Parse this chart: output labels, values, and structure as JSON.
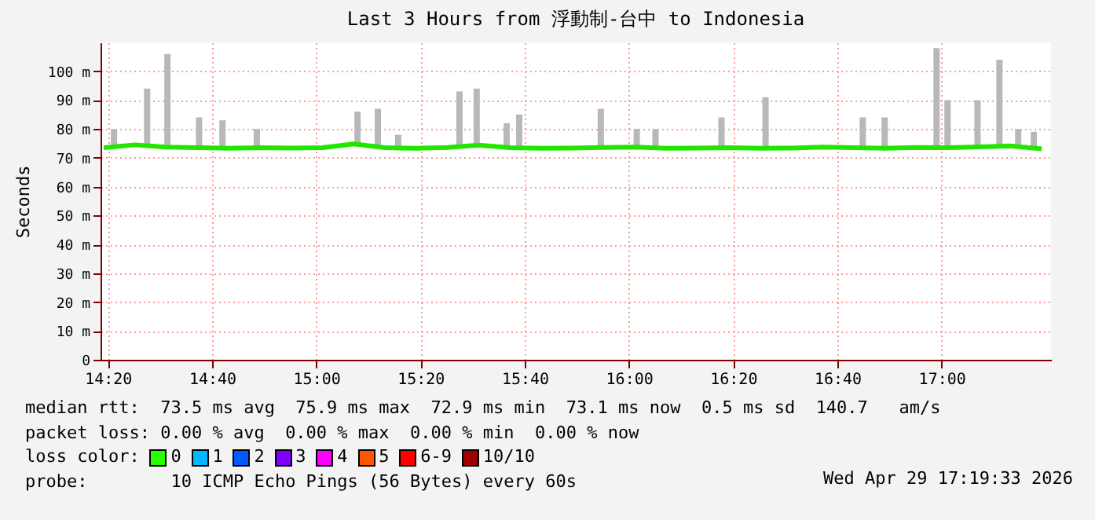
{
  "chart_data": {
    "type": "line",
    "title": "Last 3 Hours from 浮動制-台中 to Indonesia",
    "ylabel": "Seconds",
    "xlim": [
      14.31,
      17.35
    ],
    "xticks": [
      {
        "value": 14.3333,
        "label": "14:20"
      },
      {
        "value": 14.6667,
        "label": "14:40"
      },
      {
        "value": 15,
        "label": "15:00"
      },
      {
        "value": 15.3333,
        "label": "15:20"
      },
      {
        "value": 15.6667,
        "label": "15:40"
      },
      {
        "value": 16,
        "label": "16:00"
      },
      {
        "value": 16.3333,
        "label": "16:20"
      },
      {
        "value": 16.6667,
        "label": "16:40"
      },
      {
        "value": 17,
        "label": "17:00"
      }
    ],
    "ylim": [
      0,
      110
    ],
    "yticks": [
      0,
      {
        "value": 10,
        "label": "10 m"
      },
      {
        "value": 20,
        "label": "20 m"
      },
      {
        "value": 30,
        "label": "30 m"
      },
      {
        "value": 40,
        "label": "40 m"
      },
      {
        "value": 50,
        "label": "50 m"
      },
      {
        "value": 60,
        "label": "60 m"
      },
      {
        "value": 70,
        "label": "70 m"
      },
      {
        "value": 80,
        "label": "80 m"
      },
      {
        "value": 90,
        "label": "90 m"
      },
      {
        "value": 100,
        "label": "100 m"
      }
    ],
    "grid": true,
    "marker": "none",
    "line_style": "solid",
    "series": [
      {
        "type": "bar",
        "color": "#b8b8b8",
        "base": [
          74,
          74,
          74,
          74,
          74,
          74,
          74,
          74,
          74,
          74,
          74,
          74,
          74,
          74,
          74,
          74,
          74,
          74,
          74,
          74,
          74,
          74,
          74,
          74,
          74,
          74
        ],
        "x": [
          14.353,
          14.459,
          14.524,
          14.625,
          14.7,
          14.81,
          15.132,
          15.197,
          15.262,
          15.458,
          15.513,
          15.609,
          15.649,
          15.91,
          16.025,
          16.085,
          16.296,
          16.437,
          16.748,
          16.818,
          16.984,
          17.019,
          17.115,
          17.185,
          17.245,
          17.295
        ],
        "values": [
          6,
          20,
          32,
          10,
          9,
          6,
          12,
          13,
          4,
          19,
          20,
          8,
          11,
          13,
          6,
          6,
          10,
          17,
          10,
          10,
          34,
          16,
          16,
          30,
          6,
          5
        ]
      },
      {
        "color": "#22e600",
        "x": [
          14.32,
          14.42,
          14.52,
          14.62,
          14.72,
          14.82,
          14.92,
          15.02,
          15.12,
          15.22,
          15.32,
          15.42,
          15.52,
          15.62,
          15.72,
          15.82,
          15.92,
          16.02,
          16.12,
          16.22,
          16.32,
          16.42,
          16.52,
          16.62,
          16.72,
          16.82,
          16.92,
          17.02,
          17.12,
          17.22,
          17.32
        ],
        "values": [
          73.5,
          74.5,
          73.7,
          73.5,
          73.3,
          73.5,
          73.4,
          73.5,
          74.8,
          73.5,
          73.3,
          73.6,
          74.4,
          73.5,
          73.3,
          73.4,
          73.6,
          73.7,
          73.3,
          73.4,
          73.5,
          73.3,
          73.4,
          73.7,
          73.5,
          73.3,
          73.6,
          73.5,
          73.8,
          74.1,
          73.1
        ]
      }
    ],
    "annotations": [
      "median rtt:  73.5 ms avg  75.9 ms max  72.9 ms min  73.1 ms now  0.5 ms sd  140.7   am/s",
      "packet loss: 0.00 % avg  0.00 % max  0.00 % min  0.00 % now",
      "loss color:   0   1   2   3   4   5   6-9   10/10",
      "probe:        10 ICMP Echo Pings (56 Bytes) every 60s",
      "Wed Apr 29 17:19:33 2026"
    ]
  }
}
